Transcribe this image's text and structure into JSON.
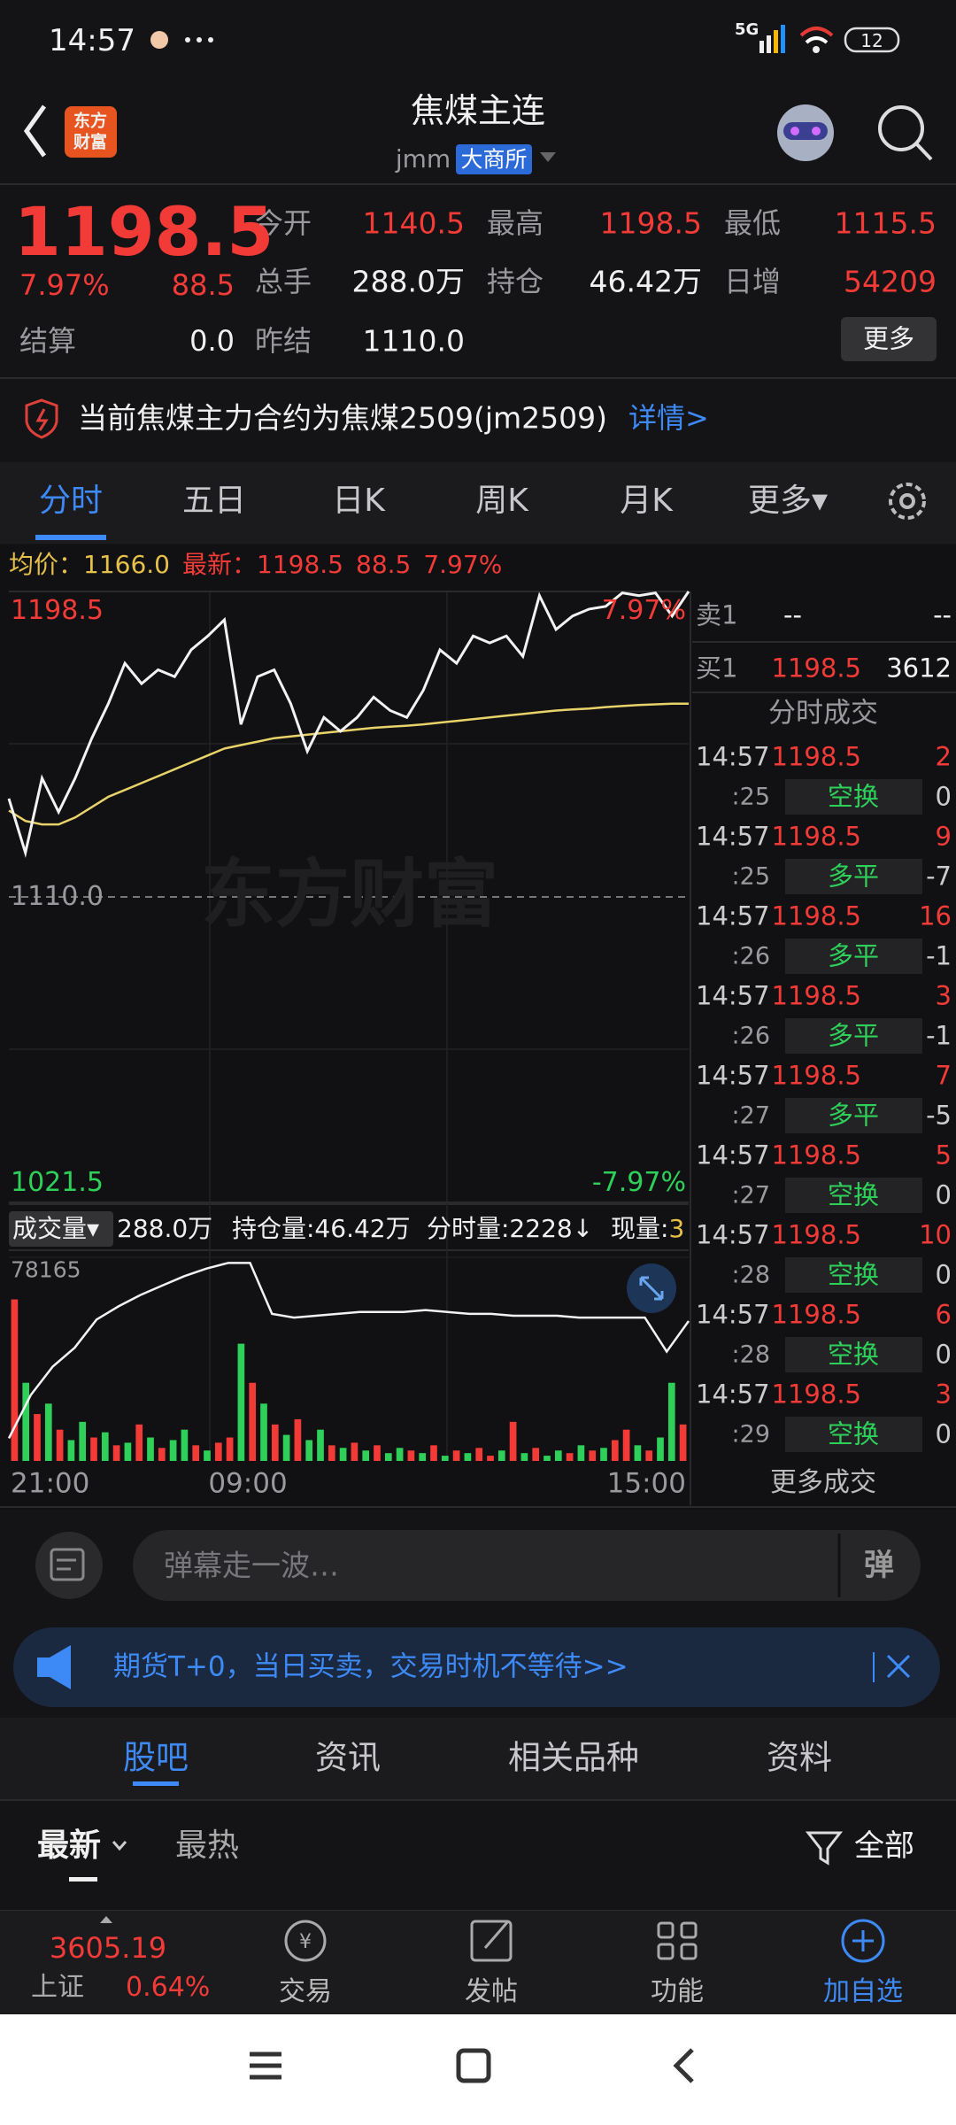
{
  "status_bar": {
    "time": "14:57",
    "network": "5G",
    "battery": "12"
  },
  "header": {
    "logo": [
      "东方",
      "财富"
    ],
    "title": "焦煤主连",
    "code": "jmm",
    "exchange": "大商所"
  },
  "quote": {
    "price": "1198.5",
    "change_pct": "7.97%",
    "change": "88.5",
    "settle_label": "结算",
    "settle": "0.0",
    "rows": [
      [
        {
          "label": "今开",
          "value": "1140.5",
          "color": "red"
        },
        {
          "label": "最高",
          "value": "1198.5",
          "color": "red"
        },
        {
          "label": "最低",
          "value": "1115.5",
          "color": "red"
        }
      ],
      [
        {
          "label": "总手",
          "value": "288.0万",
          "color": "white"
        },
        {
          "label": "持仓",
          "value": "46.42万",
          "color": "white"
        },
        {
          "label": "日增",
          "value": "54209",
          "color": "red"
        }
      ],
      [
        {
          "label": "昨结",
          "value": "1110.0",
          "color": "white"
        }
      ]
    ],
    "more": "更多"
  },
  "notice": {
    "text": "当前焦煤主力合约为焦煤2509(jm2509)",
    "link": "详情>"
  },
  "tabs": {
    "items": [
      "分时",
      "五日",
      "日K",
      "周K",
      "月K",
      "更多▾"
    ],
    "active": 0
  },
  "chart_data": {
    "type": "line",
    "avg_label": "均价：",
    "avg": "1166.0",
    "latest_label": "最新：",
    "latest": "1198.5",
    "latest_change": "88.5",
    "latest_pct": "7.97%",
    "ylim": [
      1021.5,
      1198.5
    ],
    "yticks": [
      1198.5,
      {
        "value": 1110,
        "label": "1110.0"
      },
      1021.5
    ],
    "pct_labels": [
      "7.97%",
      "-7.97%"
    ],
    "watermark": "东方财富",
    "grid": true,
    "price": {
      "color": "#f2f2f2",
      "values": [
        1138.5,
        1122.8,
        1144.4,
        1134.6,
        1144.4,
        1156,
        1166,
        1177.7,
        1171.8,
        1175.8,
        1173.8,
        1181.6,
        1185.6,
        1190.3,
        1160,
        1173.8,
        1175.8,
        1166,
        1152.2,
        1162,
        1158,
        1162,
        1167.9,
        1164,
        1162,
        1169.9,
        1181.6,
        1177.7,
        1185.6,
        1183.6,
        1185.6,
        1179.7,
        1197.3,
        1187.5,
        1191.4,
        1193.4,
        1194.2,
        1198.1,
        1197.3,
        1198.1,
        1191.4,
        1198.5
      ]
    },
    "average": {
      "color": "#e8d36a",
      "values": [
        1135,
        1132,
        1131,
        1131,
        1133,
        1136,
        1139,
        1141,
        1143,
        1145,
        1147,
        1149,
        1151,
        1153,
        1154,
        1155,
        1156,
        1156.5,
        1157,
        1157.5,
        1158,
        1158.5,
        1159,
        1159.3,
        1159.6,
        1160,
        1160.5,
        1161,
        1161.5,
        1162,
        1162.5,
        1163,
        1163.5,
        1164,
        1164.3,
        1164.6,
        1165,
        1165.3,
        1165.6,
        1165.8,
        1166,
        1166
      ]
    },
    "volume": {
      "label": "成交量▾",
      "total": "288.0万",
      "oi_text": "持仓量:46.42万",
      "tick_text": "分时量:2228↓",
      "now_label": "现量:",
      "now": "3",
      "ylim": [
        0,
        78165
      ],
      "yticks": [
        78165
      ],
      "values": [
        62000,
        30000,
        18000,
        22000,
        12000,
        8000,
        15000,
        9000,
        11000,
        6000,
        7000,
        14000,
        9000,
        5000,
        8000,
        12000,
        6000,
        4000,
        7000,
        9000,
        45000,
        30000,
        22000,
        14000,
        10000,
        16000,
        8000,
        12000,
        6000,
        5000,
        7000,
        4000,
        6000,
        3000,
        5000,
        4000,
        3000,
        6000,
        2000,
        4000,
        3000,
        5000,
        2000,
        4000,
        15000,
        3000,
        5000,
        2000,
        4000,
        3000,
        6000,
        4000,
        5000,
        8000,
        12000,
        6000,
        4000,
        9000,
        30000,
        14000
      ],
      "up": [
        true,
        false,
        true,
        false,
        true,
        false,
        false,
        true,
        false,
        true,
        false,
        true,
        false,
        true,
        false,
        false,
        true,
        false,
        true,
        true,
        false,
        true,
        false,
        true,
        false,
        true,
        false,
        false,
        true,
        false,
        true,
        false,
        true,
        false,
        false,
        true,
        false,
        true,
        false,
        true,
        false,
        true,
        true,
        false,
        true,
        false,
        true,
        false,
        false,
        true,
        false,
        true,
        false,
        true,
        true,
        false,
        true,
        false,
        false,
        true
      ],
      "oi_color": "#f2f2f2",
      "oi_lim": [
        39,
        49.8
      ],
      "oi": [
        40.2,
        42.5,
        44,
        45,
        46.5,
        47.2,
        47.8,
        48.3,
        48.8,
        49.2,
        49.5,
        49.5,
        46.8,
        46.6,
        46.7,
        46.8,
        46.9,
        46.9,
        46.9,
        47,
        46.9,
        46.8,
        46.8,
        46.7,
        46.7,
        46.7,
        46.6,
        46.6,
        46.6,
        46.6,
        44.8,
        46.42
      ]
    },
    "x_labels": [
      "21:00",
      "09:00",
      "15:00"
    ]
  },
  "book": {
    "sell": [
      "卖1",
      "--",
      "--"
    ],
    "buy": [
      "买1",
      "1198.5",
      "3612"
    ],
    "title": "分时成交",
    "more": "更多成交",
    "trades": [
      {
        "time": "14:57",
        "price": "1198.5",
        "vol": "2",
        "sec": ":25",
        "kind": "空换",
        "chg": "0"
      },
      {
        "time": "14:57",
        "price": "1198.5",
        "vol": "9",
        "sec": ":25",
        "kind": "多平",
        "chg": "-7"
      },
      {
        "time": "14:57",
        "price": "1198.5",
        "vol": "16",
        "sec": ":26",
        "kind": "多平",
        "chg": "-1"
      },
      {
        "time": "14:57",
        "price": "1198.5",
        "vol": "3",
        "sec": ":26",
        "kind": "多平",
        "chg": "-1"
      },
      {
        "time": "14:57",
        "price": "1198.5",
        "vol": "7",
        "sec": ":27",
        "kind": "多平",
        "chg": "-5"
      },
      {
        "time": "14:57",
        "price": "1198.5",
        "vol": "5",
        "sec": ":27",
        "kind": "空换",
        "chg": "0"
      },
      {
        "time": "14:57",
        "price": "1198.5",
        "vol": "10",
        "sec": ":28",
        "kind": "空换",
        "chg": "0"
      },
      {
        "time": "14:57",
        "price": "1198.5",
        "vol": "6",
        "sec": ":28",
        "kind": "空换",
        "chg": "0"
      },
      {
        "time": "14:57",
        "price": "1198.5",
        "vol": "3",
        "sec": ":29",
        "kind": "空换",
        "chg": "0"
      }
    ]
  },
  "comment": {
    "placeholder": "弹幕走一波…",
    "button": "弹"
  },
  "ad": {
    "text": "期货T+0，当日买卖，交易时机不等待>>"
  },
  "section_tabs": {
    "items": [
      "股吧",
      "资讯",
      "相关品种",
      "资料"
    ],
    "active": 0
  },
  "feed_tabs": {
    "items": [
      "最新",
      "最热"
    ],
    "filter": "全部"
  },
  "nav": {
    "index_value": "3605.19",
    "index_name": "上证",
    "index_pct": "0.64%",
    "items": [
      "交易",
      "发帖",
      "功能",
      "加自选"
    ]
  }
}
